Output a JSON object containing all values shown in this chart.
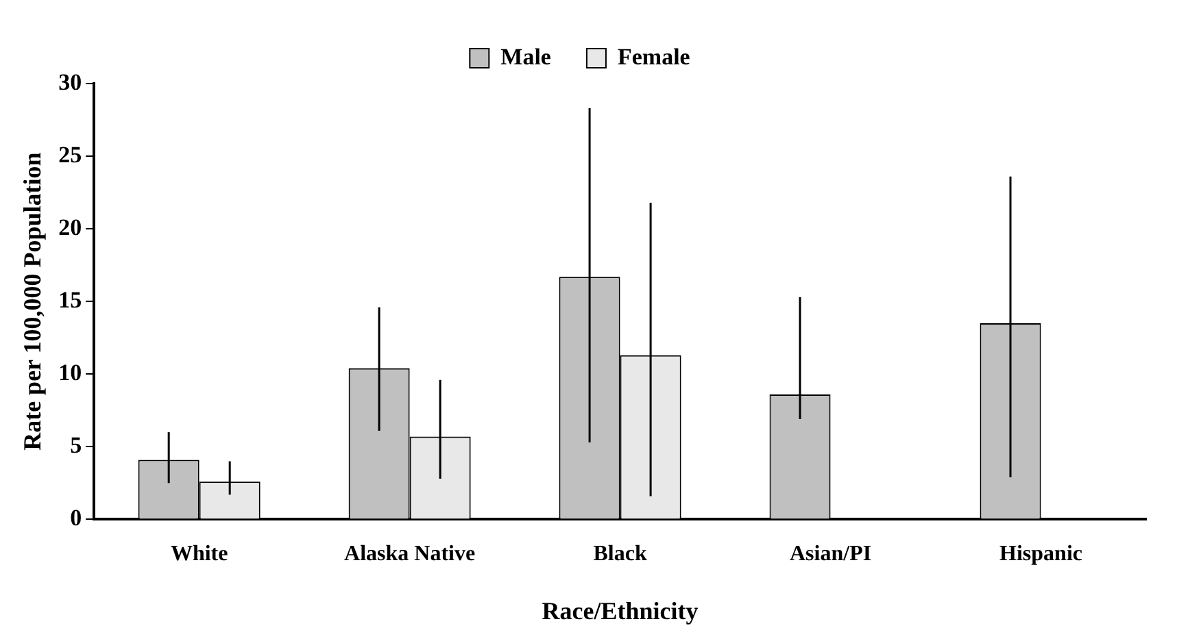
{
  "chart_data": {
    "type": "bar",
    "categories": [
      "White",
      "Alaska Native",
      "Black",
      "Asian/PI",
      "Hispanic"
    ],
    "series": [
      {
        "name": "Male",
        "color": "#c0c0c0",
        "values": [
          4.1,
          10.4,
          16.7,
          8.6,
          13.5
        ],
        "errors": [
          [
            2.5,
            6.0
          ],
          [
            6.1,
            14.6
          ],
          [
            5.3,
            28.3
          ],
          [
            6.9,
            15.3
          ],
          [
            2.9,
            23.6
          ]
        ]
      },
      {
        "name": "Female",
        "color": "#e8e8e8",
        "values": [
          2.6,
          5.7,
          11.3,
          null,
          null
        ],
        "errors": [
          [
            1.7,
            4.0
          ],
          [
            2.8,
            9.6
          ],
          [
            1.6,
            21.8
          ],
          null,
          null
        ]
      }
    ],
    "xlabel": "Race/Ethnicity",
    "ylabel": "Rate per 100,000 Population",
    "ylim": [
      0,
      30
    ],
    "yticks": [
      0,
      5,
      10,
      15,
      20,
      25,
      30
    ],
    "grid": false,
    "legend": "top"
  }
}
